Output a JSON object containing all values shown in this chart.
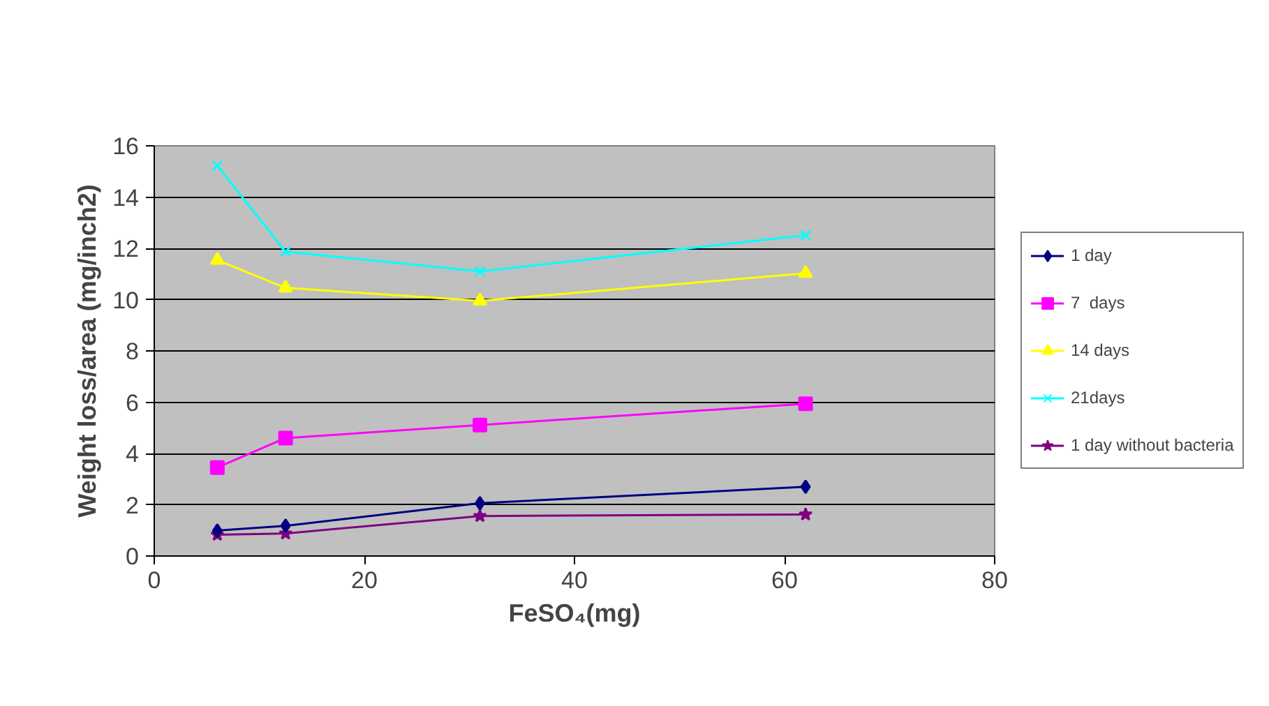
{
  "chart_data": {
    "type": "line",
    "xlabel": "FeSO₄(mg)",
    "ylabel": "Weight loss/area (mg/inch2)",
    "x": [
      6,
      12.5,
      31,
      62
    ],
    "xlim": [
      0,
      80
    ],
    "xticks": [
      0,
      20,
      40,
      60,
      80
    ],
    "ylim": [
      0,
      16
    ],
    "yticks": [
      0,
      2,
      4,
      6,
      8,
      10,
      12,
      14,
      16
    ],
    "grid": "y",
    "legend": "right",
    "series": [
      {
        "name": "1 day",
        "color": "#000080",
        "marker": "diamond",
        "values": [
          0.99,
          1.18,
          2.06,
          2.7
        ]
      },
      {
        "name": "7  days",
        "color": "#ff00ff",
        "marker": "square",
        "values": [
          3.45,
          4.6,
          5.11,
          5.94
        ]
      },
      {
        "name": "14 days",
        "color": "#ffff00",
        "marker": "triangle",
        "values": [
          11.54,
          10.46,
          9.95,
          11.03
        ]
      },
      {
        "name": "21days",
        "color": "#00ffff",
        "marker": "cross",
        "values": [
          15.22,
          11.87,
          11.1,
          12.51
        ]
      },
      {
        "name": "1 day without bacteria",
        "color": "#800080",
        "marker": "star",
        "values": [
          0.83,
          0.88,
          1.56,
          1.62
        ]
      }
    ]
  }
}
